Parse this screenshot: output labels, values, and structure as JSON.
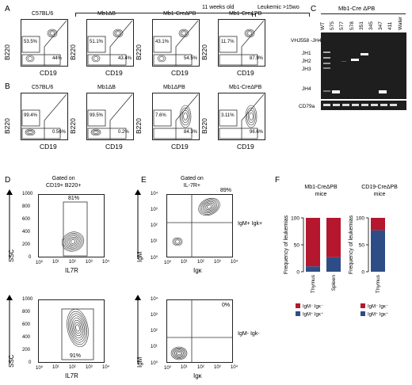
{
  "panels": {
    "A": "A",
    "B": "B",
    "C": "C",
    "D": "D",
    "E": "E",
    "F": "F"
  },
  "panelA": {
    "header_11w": "11 weeks old",
    "header_leuk": "Leukemic >15wo",
    "plots": [
      {
        "title": "C57BL/6",
        "gate_top": "53.5%",
        "gate_bottom": "44%"
      },
      {
        "title": "Mb1ΔB",
        "gate_top": "51.1%",
        "gate_bottom": "43.4%"
      },
      {
        "title": "Mb1-CreΔPB",
        "gate_top": "43.1%",
        "gate_bottom": "54.5%"
      },
      {
        "title": "Mb1-CreΔPB",
        "gate_top": "11.7%",
        "gate_bottom": "87.9%"
      }
    ],
    "ylabel": "B220",
    "xlabel": "CD19"
  },
  "panelB": {
    "plots": [
      {
        "title": "C57BL/6",
        "gate_top": "99.4%",
        "gate_bottom": "0.56%"
      },
      {
        "title": "Mb1ΔB",
        "gate_top": "99.5%",
        "gate_bottom": "0.2%"
      },
      {
        "title": "Mb1ΔPB",
        "gate_top": "7.6%",
        "gate_bottom": "84.3%"
      },
      {
        "title": "Mb1-CreΔPB",
        "gate_top": "3.11%",
        "gate_bottom": "96.6%"
      }
    ],
    "ylabel": "B220",
    "xlabel": "CD19"
  },
  "panelC": {
    "header": "Mb1-Cre ΔPB",
    "lanes": [
      "WT",
      "575",
      "577",
      "578",
      "351",
      "345",
      "347",
      "411",
      "Water"
    ],
    "row1_label": "VHJ558 -JH4",
    "jh_labels": [
      "JH1",
      "JH2",
      "JH3",
      "JH4"
    ],
    "row2_label": "CD79a"
  },
  "panelD": {
    "gate_label": "Gated on\nCD19+ B220+",
    "top_pct": "81%",
    "bottom_pct": "91%",
    "ylabel": "SSC",
    "xlabel": "IL7R",
    "yticks": [
      "1000",
      "800",
      "600",
      "400",
      "200",
      "0"
    ],
    "xticks": [
      "10⁰",
      "10¹",
      "10²",
      "10³",
      "10⁴"
    ]
  },
  "panelE": {
    "gate_label": "Gated on\nIL-7R+",
    "top_pct": "89%",
    "bottom_pct": "0%",
    "top_pop": "IgM+ Igk+",
    "bottom_pop": "IgM- Igk-",
    "ylabel": "IgM",
    "xlabel": "Igκ",
    "yticks": [
      "10⁴",
      "10³",
      "10²",
      "10¹",
      "10⁰"
    ],
    "xticks": [
      "10⁰",
      "10¹",
      "10²",
      "10³",
      "10⁴"
    ]
  },
  "colors": {
    "red": "#b5172f",
    "blue": "#2e4d86"
  },
  "chart_data": [
    {
      "type": "bar",
      "title": "Mb1-CreΔPB mice",
      "ylabel": "Frequency of leukemias",
      "categories": [
        "Thymus",
        "Spleen"
      ],
      "ylim": [
        0,
        100
      ],
      "yticks": [
        "0",
        "50",
        "100"
      ],
      "series": [
        {
          "name": "IgM⁺ Igκ⁺",
          "values": [
            10,
            27
          ]
        },
        {
          "name": "IgM⁻ Igκ⁻",
          "values": [
            90,
            73
          ]
        }
      ],
      "legend": [
        "IgM⁻ Igκ⁻",
        "IgM⁺ Igκ⁺"
      ]
    },
    {
      "type": "bar",
      "title": "CD19-CreΔPB mice",
      "ylabel": "Frequency of leukemias",
      "categories": [
        "Thymus"
      ],
      "ylim": [
        0,
        100
      ],
      "yticks": [
        "0",
        "50",
        "100"
      ],
      "series": [
        {
          "name": "IgM⁺ Igκ⁺",
          "values": [
            77
          ]
        },
        {
          "name": "IgM⁻ Igκ⁻",
          "values": [
            23
          ]
        }
      ],
      "legend": [
        "IgM⁻ Igκ⁻",
        "IgM⁺ Igκ⁺"
      ]
    }
  ]
}
